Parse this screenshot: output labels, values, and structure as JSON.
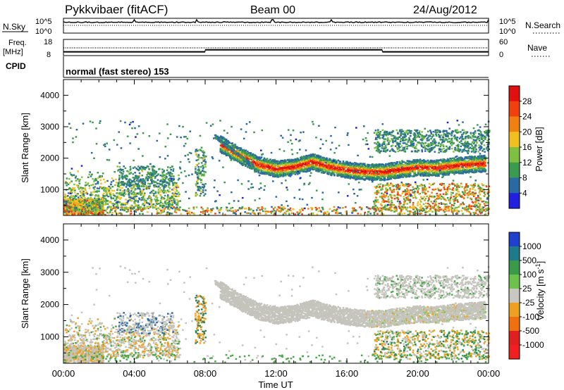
{
  "header": {
    "station": "Pykkvibaer (fitACF)",
    "beam": "Beam 00",
    "date": "24/Aug/2012"
  },
  "strips": {
    "nsky_label": "N.Sky",
    "nsky_ticks": [
      "10^5",
      "10^0"
    ],
    "nsearch_label": "N.Search",
    "nsearch_ticks": [
      "10^5",
      "10^0"
    ],
    "freq_label": "Freq.",
    "freq_unit": "[MHz]",
    "freq_ticks": [
      "18",
      "8"
    ],
    "nave_label": "Nave",
    "nave_ticks": [
      "60",
      "0"
    ],
    "cpid_label": "CPID",
    "cpid_text": "normal (fast stereo) 153"
  },
  "panels": {
    "ylabel": "Slant Range [km]",
    "xlabel": "Time UT",
    "yticks": [
      "4000",
      "3000",
      "2000",
      "1000"
    ],
    "xticks": [
      "00:00",
      "04:00",
      "08:00",
      "12:00",
      "16:00",
      "20:00",
      "00:00"
    ]
  },
  "colorbars": {
    "power_label": "Power [dB]",
    "power_ticks": [
      "28",
      "24",
      "20",
      "16",
      "12",
      "8",
      "4"
    ],
    "power_colors": [
      "#e01010",
      "#f04010",
      "#f08010",
      "#f0c020",
      "#80c040",
      "#3a9a50",
      "#2a6aa0",
      "#2020e0"
    ],
    "velocity_label": "Velocity [m s",
    "velocity_sup": "-1",
    "velocity_label_end": "]",
    "velocity_ticks": [
      "1000",
      "500",
      "100",
      "25",
      "-25",
      "-100",
      "-500",
      "-1000"
    ],
    "velocity_colors": [
      "#2040d0",
      "#1f7a8c",
      "#3a9a4a",
      "#6cc24a",
      "#c8c8c0",
      "#f0a020",
      "#f07010",
      "#e02020",
      "#f02020"
    ]
  },
  "chart_data": {
    "type": "heatmap",
    "x_range_hours": [
      0,
      24
    ],
    "y_range_km": [
      180,
      4500
    ],
    "freq_mhz": {
      "segments": [
        {
          "from": 0,
          "to": 8,
          "value": 10.2
        },
        {
          "from": 8,
          "to": 18,
          "value": 11.6
        },
        {
          "from": 18,
          "to": 24,
          "value": 10.2
        }
      ]
    },
    "nave": 8,
    "power_db_range": [
      0,
      30
    ],
    "velocity_range": [
      -1000,
      1000
    ],
    "main_echo_band": [
      {
        "t": 8.8,
        "r": 2450
      },
      {
        "t": 10.0,
        "r": 2050
      },
      {
        "t": 11.0,
        "r": 1780
      },
      {
        "t": 12.0,
        "r": 1650
      },
      {
        "t": 13.0,
        "r": 1720
      },
      {
        "t": 14.0,
        "r": 1880
      },
      {
        "t": 15.0,
        "r": 1720
      },
      {
        "t": 16.0,
        "r": 1620
      },
      {
        "t": 17.0,
        "r": 1560
      },
      {
        "t": 18.0,
        "r": 1550
      },
      {
        "t": 19.0,
        "r": 1640
      },
      {
        "t": 20.0,
        "r": 1700
      },
      {
        "t": 21.0,
        "r": 1680
      },
      {
        "t": 22.0,
        "r": 1750
      },
      {
        "t": 23.0,
        "r": 1800
      },
      {
        "t": 23.8,
        "r": 1820
      }
    ]
  }
}
